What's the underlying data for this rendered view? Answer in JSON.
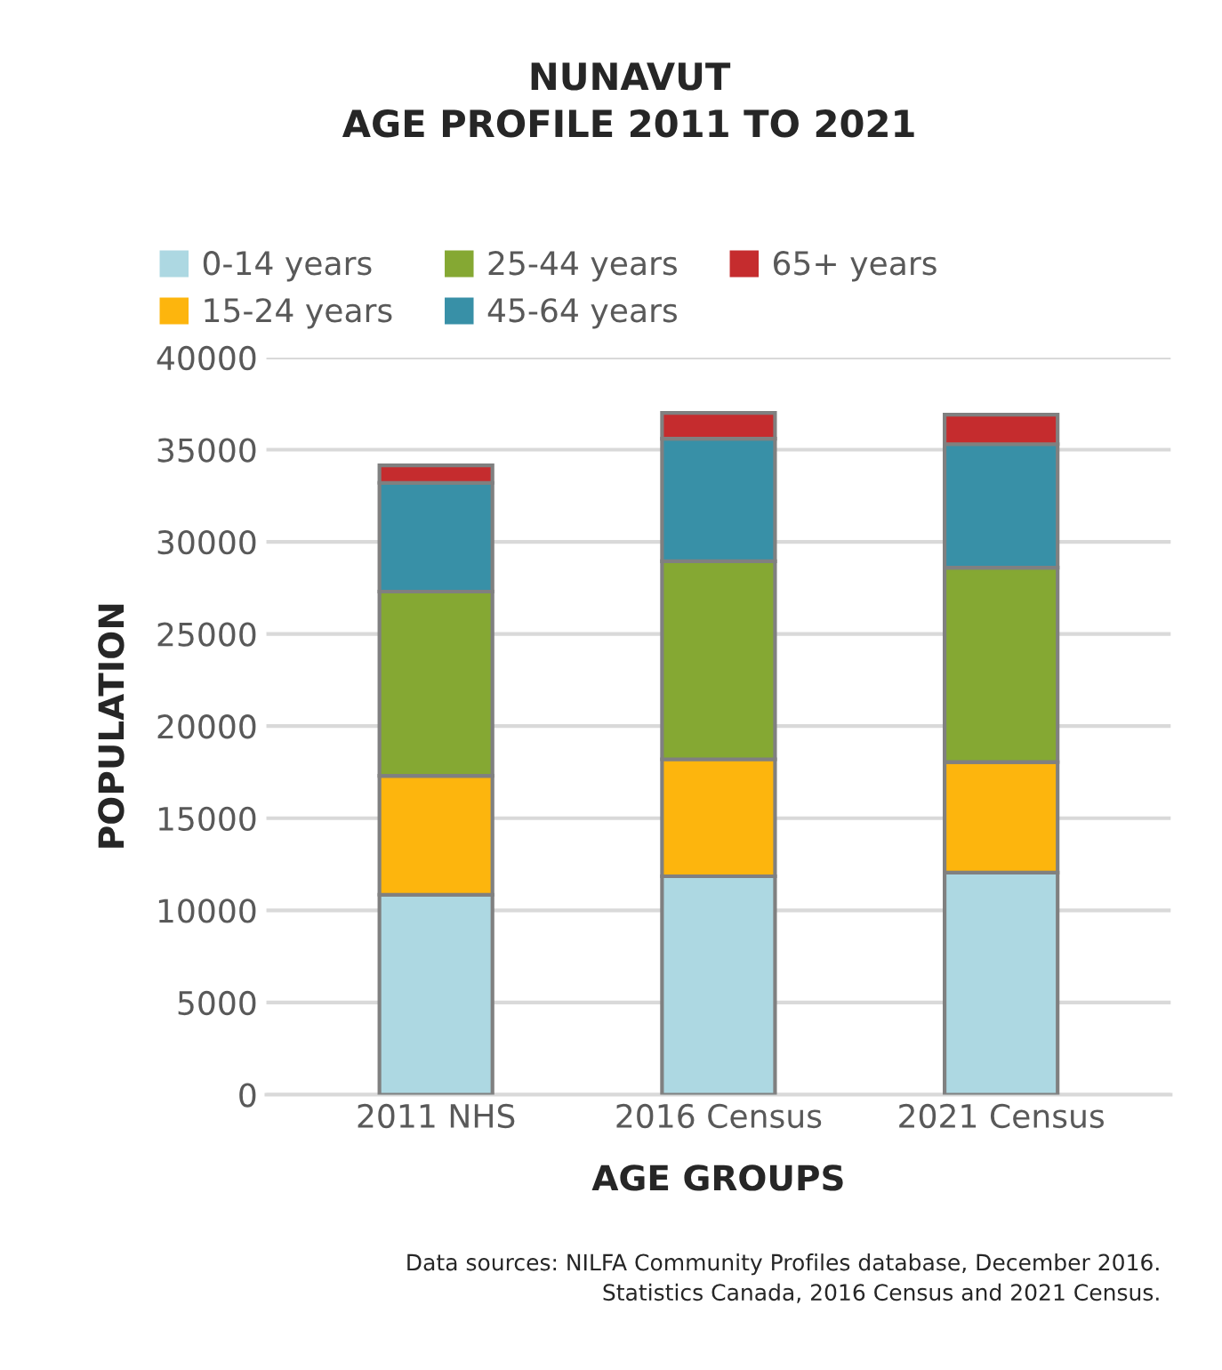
{
  "chart_data": {
    "type": "bar",
    "stacked": true,
    "title": "NUNAVUT\nAGE PROFILE 2011 TO 2021",
    "xlabel": "AGE GROUPS",
    "ylabel": "POPULATION",
    "categories": [
      "2011 NHS",
      "2016 Census",
      "2021 Census"
    ],
    "series": [
      {
        "name": "0-14 years",
        "color": "#add8e2",
        "values": [
          10850,
          11850,
          12050
        ]
      },
      {
        "name": "15-24 years",
        "color": "#fdb50d",
        "values": [
          6450,
          6350,
          6000
        ]
      },
      {
        "name": "25-44 years",
        "color": "#85a833",
        "values": [
          10000,
          10750,
          10550
        ]
      },
      {
        "name": "45-64 years",
        "color": "#3890a7",
        "values": [
          5900,
          6650,
          6700
        ]
      },
      {
        "name": "65+ years",
        "color": "#c52c2e",
        "values": [
          950,
          1400,
          1600
        ]
      }
    ],
    "ylim": [
      0,
      40000
    ],
    "yticks": [
      0,
      5000,
      10000,
      15000,
      20000,
      25000,
      30000,
      35000,
      40000
    ],
    "grid": "y",
    "legend": "top",
    "annotations": [
      "Data sources: NILFA Community Profiles database, December 2016.\nStatistics Canada, 2016 Census and 2021 Census."
    ]
  }
}
